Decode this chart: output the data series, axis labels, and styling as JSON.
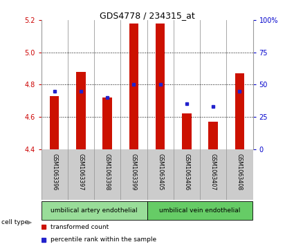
{
  "title": "GDS4778 / 234315_at",
  "samples": [
    "GSM1063396",
    "GSM1063397",
    "GSM1063398",
    "GSM1063399",
    "GSM1063405",
    "GSM1063406",
    "GSM1063407",
    "GSM1063408"
  ],
  "red_values": [
    4.73,
    4.88,
    4.72,
    5.18,
    5.18,
    4.62,
    4.57,
    4.87
  ],
  "blue_percentiles": [
    45,
    45,
    40,
    50,
    50,
    35,
    33,
    45
  ],
  "y_min": 4.4,
  "y_max": 5.2,
  "y_ticks_left": [
    4.4,
    4.6,
    4.8,
    5.0,
    5.2
  ],
  "y_ticks_right": [
    0,
    25,
    50,
    75,
    100
  ],
  "bar_color": "#cc1100",
  "blue_color": "#2222cc",
  "cell_type_label": "cell type",
  "cell_types": [
    {
      "label": "umbilical artery endothelial",
      "count": 4
    },
    {
      "label": "umbilical vein endothelial",
      "count": 4
    }
  ],
  "group1_color": "#99dd99",
  "group2_color": "#66cc66",
  "axis_color_left": "#cc0000",
  "axis_color_right": "#0000cc",
  "bg_color": "#ffffff",
  "col_bg": "#cccccc",
  "legend": [
    {
      "color": "#cc1100",
      "label": "transformed count"
    },
    {
      "color": "#2222cc",
      "label": "percentile rank within the sample"
    }
  ]
}
